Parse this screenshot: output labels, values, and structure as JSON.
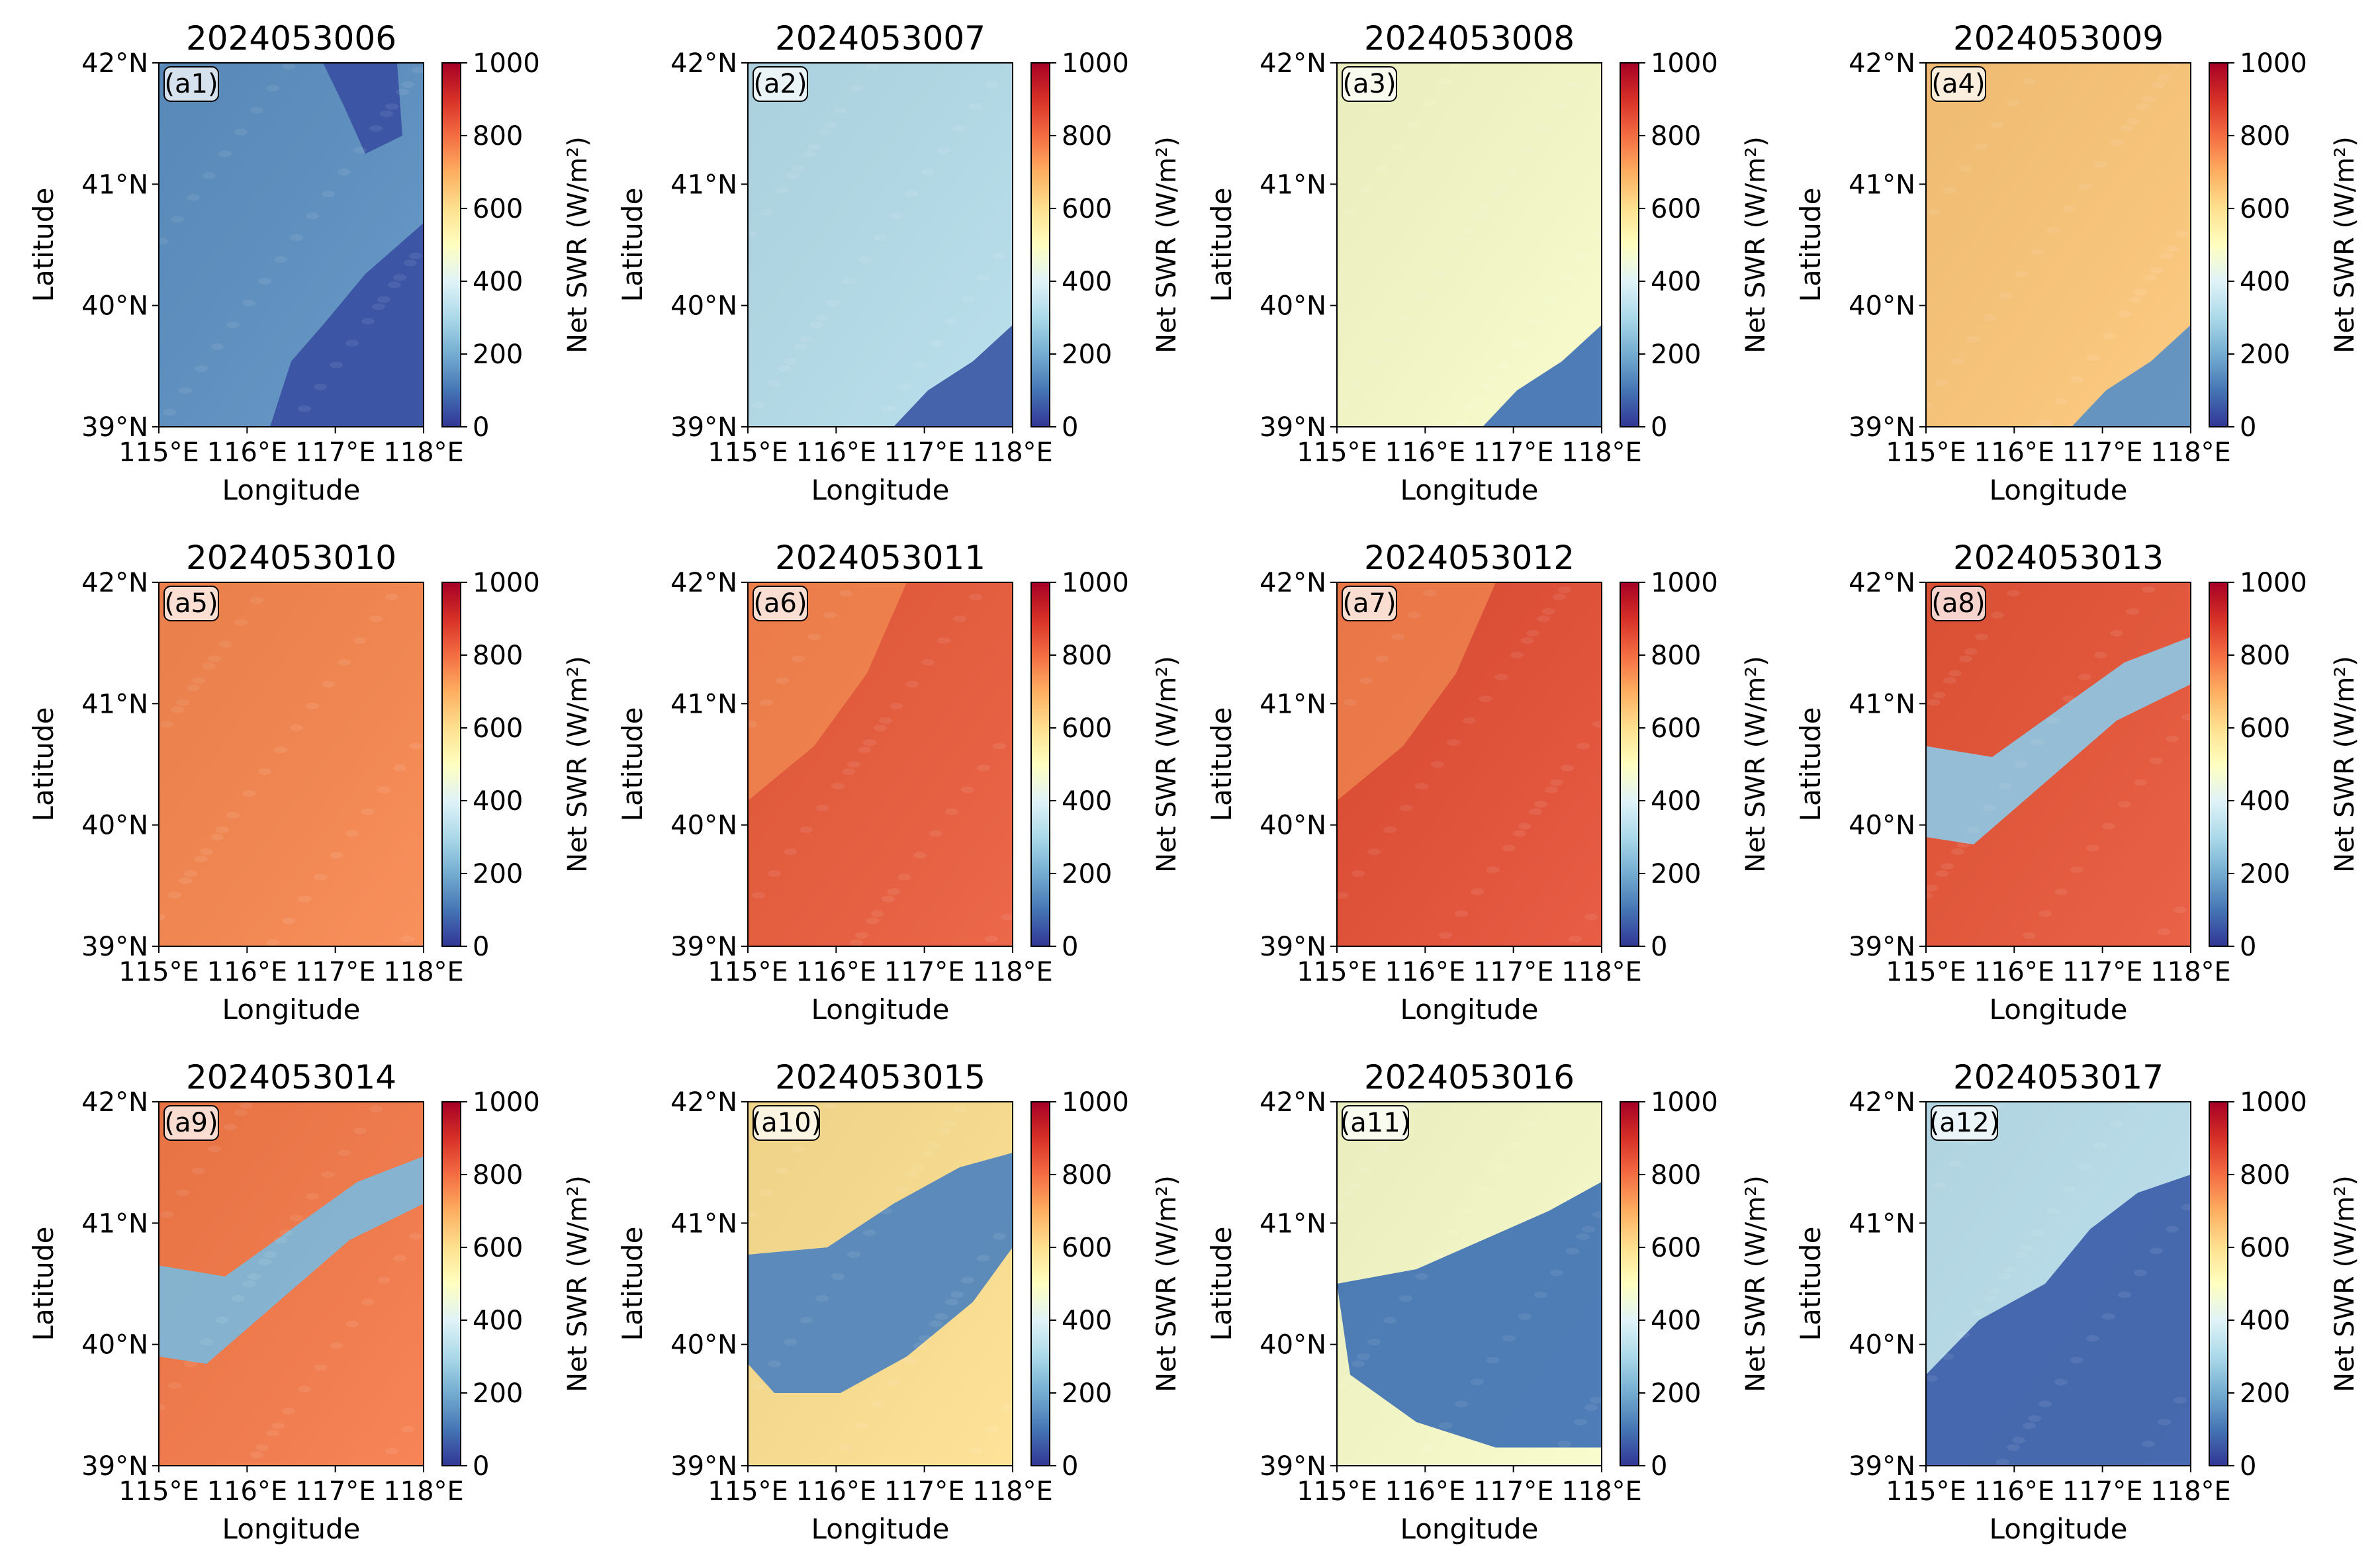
{
  "figure": {
    "colormap": "RdYlBu_r",
    "colormap_stops": [
      "#313695",
      "#4575b4",
      "#74add1",
      "#abd9e9",
      "#e0f3f8",
      "#ffffbf",
      "#fee090",
      "#fdae61",
      "#f46d43",
      "#d73027",
      "#a50026"
    ],
    "axis_labels": {
      "x": "Longitude",
      "y": "Latitude"
    },
    "colorbar": {
      "label": "Net SWR (W/m²)",
      "ticks": [
        "0",
        "200",
        "400",
        "600",
        "800",
        "1000"
      ],
      "range": [
        0,
        1000
      ]
    },
    "x_ticks": [
      "115°E",
      "116°E",
      "117°E",
      "118°E"
    ],
    "y_ticks": [
      "42°N",
      "41°N",
      "40°N",
      "39°N"
    ]
  },
  "chart_data": [
    {
      "type": "heatmap",
      "title": "2024053006",
      "panel_label": "(a1)",
      "xlim": [
        115,
        118
      ],
      "ylim": [
        39,
        42
      ],
      "xlabel": "Longitude",
      "ylabel": "Latitude",
      "base_value": 150,
      "cloud_value": 45,
      "cloud_regions": [
        "southeast",
        "north-edge"
      ]
    },
    {
      "type": "heatmap",
      "title": "2024053007",
      "panel_label": "(a2)",
      "xlim": [
        115,
        118
      ],
      "ylim": [
        39,
        42
      ],
      "xlabel": "Longitude",
      "ylabel": "Latitude",
      "base_value": 320,
      "cloud_value": 60,
      "cloud_regions": [
        "southeast-corner"
      ]
    },
    {
      "type": "heatmap",
      "title": "2024053008",
      "panel_label": "(a3)",
      "xlim": [
        115,
        118
      ],
      "ylim": [
        39,
        42
      ],
      "xlabel": "Longitude",
      "ylabel": "Latitude",
      "base_value": 480,
      "cloud_value": 100,
      "cloud_regions": [
        "southeast-corner"
      ]
    },
    {
      "type": "heatmap",
      "title": "2024053009",
      "panel_label": "(a4)",
      "xlim": [
        115,
        118
      ],
      "ylim": [
        39,
        42
      ],
      "xlabel": "Longitude",
      "ylabel": "Latitude",
      "base_value": 650,
      "cloud_value": 150,
      "cloud_regions": [
        "southeast-corner"
      ]
    },
    {
      "type": "heatmap",
      "title": "2024053010",
      "panel_label": "(a5)",
      "xlim": [
        115,
        118
      ],
      "ylim": [
        39,
        42
      ],
      "xlabel": "Longitude",
      "ylabel": "Latitude",
      "base_value": 760,
      "cloud_value": 760,
      "cloud_regions": []
    },
    {
      "type": "heatmap",
      "title": "2024053011",
      "panel_label": "(a6)",
      "xlim": [
        115,
        118
      ],
      "ylim": [
        39,
        42
      ],
      "xlabel": "Longitude",
      "ylabel": "Latitude",
      "base_value": 830,
      "cloud_value": 700,
      "cloud_regions": [
        "northwest-texture"
      ]
    },
    {
      "type": "heatmap",
      "title": "2024053012",
      "panel_label": "(a7)",
      "xlim": [
        115,
        118
      ],
      "ylim": [
        39,
        42
      ],
      "xlabel": "Longitude",
      "ylabel": "Latitude",
      "base_value": 850,
      "cloud_value": 700,
      "cloud_regions": [
        "northwest-texture"
      ]
    },
    {
      "type": "heatmap",
      "title": "2024053013",
      "panel_label": "(a8)",
      "xlim": [
        115,
        118
      ],
      "ylim": [
        39,
        42
      ],
      "xlabel": "Longitude",
      "ylabel": "Latitude",
      "base_value": 840,
      "cloud_value": 250,
      "cloud_regions": [
        "diagonal-band"
      ]
    },
    {
      "type": "heatmap",
      "title": "2024053014",
      "panel_label": "(a9)",
      "xlim": [
        115,
        118
      ],
      "ylim": [
        39,
        42
      ],
      "xlabel": "Longitude",
      "ylabel": "Latitude",
      "base_value": 780,
      "cloud_value": 220,
      "cloud_regions": [
        "diagonal-band"
      ]
    },
    {
      "type": "heatmap",
      "title": "2024053015",
      "panel_label": "(a10)",
      "xlim": [
        115,
        118
      ],
      "ylim": [
        39,
        42
      ],
      "xlabel": "Longitude",
      "ylabel": "Latitude",
      "base_value": 600,
      "cloud_value": 130,
      "cloud_regions": [
        "diagonal-band-wide"
      ]
    },
    {
      "type": "heatmap",
      "title": "2024053016",
      "panel_label": "(a11)",
      "xlim": [
        115,
        118
      ],
      "ylim": [
        39,
        42
      ],
      "xlabel": "Longitude",
      "ylabel": "Latitude",
      "base_value": 480,
      "cloud_value": 100,
      "cloud_regions": [
        "center-east"
      ]
    },
    {
      "type": "heatmap",
      "title": "2024053017",
      "panel_label": "(a12)",
      "xlim": [
        115,
        118
      ],
      "ylim": [
        39,
        42
      ],
      "xlabel": "Longitude",
      "ylabel": "Latitude",
      "base_value": 330,
      "cloud_value": 70,
      "cloud_regions": [
        "southeast-large"
      ]
    }
  ]
}
